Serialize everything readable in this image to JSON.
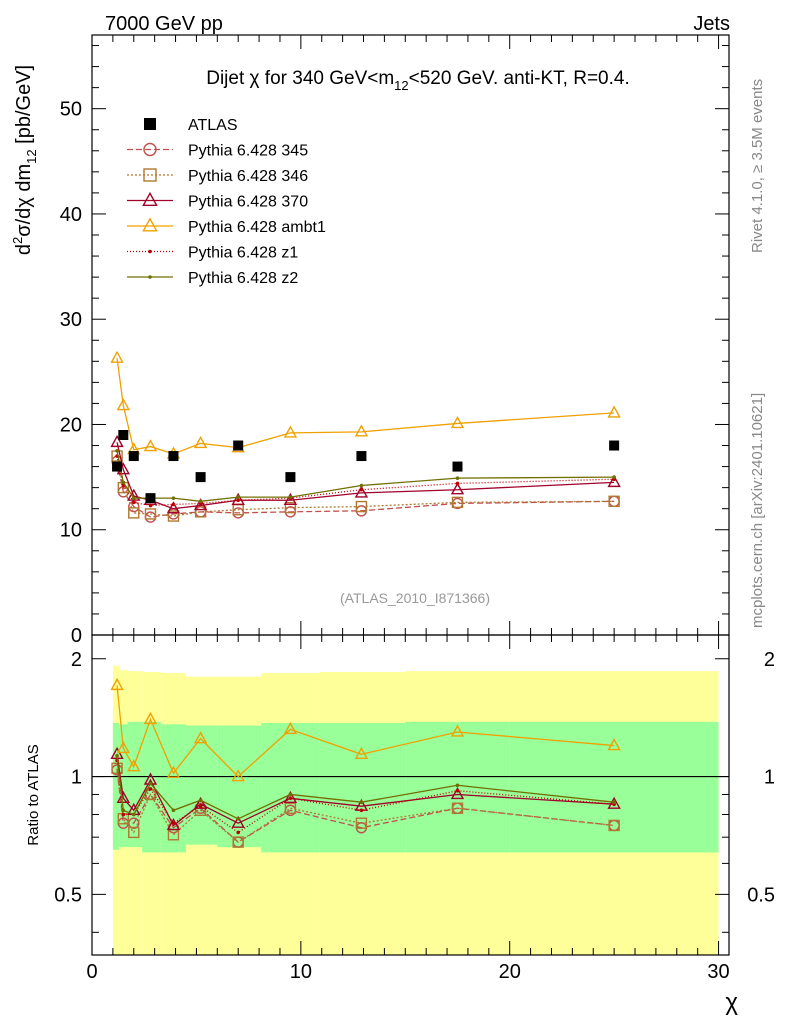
{
  "header": {
    "left": "7000 GeV pp",
    "right": "Jets"
  },
  "side_labels": {
    "rivet": "Rivet 4.1.0, ≥ 3.5M events",
    "mcplots": "mcplots.cern.ch [arXiv:2401.10621]"
  },
  "chart_data": {
    "type": "line",
    "title": "Dijet χ for 340 GeV<m₁₂<520 GeV.  anti-KT, R=0.4.",
    "title_parts": {
      "a": "Dijet ",
      "chi": "χ",
      "b": " for 340 GeV<m",
      "sub": "12",
      "c": "<520 GeV.  anti-KT, R=0.4."
    },
    "analysis_id": "(ATLAS_2010_I871366)",
    "xlabel": "χ",
    "ylabel": "d²σ/dχ dm₁₂ [pb/GeV]",
    "ylabel_parts": {
      "d": "d",
      "sup2": "2",
      "rest": "σ/dχ dm",
      "sub": "12",
      "unit": " [pb/GeV]"
    },
    "ratio_ylabel": "Ratio to ATLAS",
    "xlim": [
      0,
      30.5
    ],
    "ylim": [
      0,
      57
    ],
    "ratio_ylim": [
      0.35,
      2.3
    ],
    "x_ticks": [
      0,
      10,
      20,
      30
    ],
    "y_ticks": [
      0,
      10,
      20,
      30,
      40,
      50
    ],
    "ratio_ticks": [
      0.5,
      1,
      2
    ],
    "ratio_tick_labels": [
      "0.5",
      "1",
      "2"
    ],
    "legend_position": "top-left",
    "x": [
      1.2,
      1.5,
      2.0,
      2.8,
      3.9,
      5.2,
      7.0,
      9.5,
      12.9,
      17.5,
      25.0
    ],
    "atlas": [
      16,
      19,
      17,
      13,
      17,
      15,
      18,
      15,
      17,
      16,
      18
    ],
    "series": [
      {
        "name": "ATLAS",
        "color": "#000000",
        "marker": "square-filled",
        "dash": ""
      },
      {
        "name": "Pythia 6.428 345",
        "color": "#c0504d",
        "marker": "circle",
        "dash": "6,3",
        "values": [
          16.5,
          13.6,
          12.2,
          11.2,
          11.5,
          11.7,
          11.6,
          11.7,
          11.8,
          12.5,
          12.7
        ]
      },
      {
        "name": "Pythia 6.428 346",
        "color": "#b07830",
        "marker": "square",
        "dash": "2,2",
        "values": [
          17.0,
          14.0,
          11.6,
          11.5,
          11.3,
          11.7,
          11.9,
          12.1,
          12.2,
          12.6,
          12.7
        ]
      },
      {
        "name": "Pythia 6.428 370",
        "color": "#a0002a",
        "marker": "triangle",
        "dash": "",
        "values": [
          18.3,
          15.7,
          13.2,
          12.8,
          12.0,
          12.3,
          12.8,
          12.8,
          13.5,
          13.8,
          14.5
        ]
      },
      {
        "name": "Pythia 6.428 ambt1",
        "color": "#f0a000",
        "marker": "triangle",
        "dash": "",
        "values": [
          26.3,
          21.8,
          17.6,
          17.9,
          17.2,
          18.2,
          17.8,
          19.2,
          19.3,
          20.1,
          21.1
        ]
      },
      {
        "name": "Pythia 6.428 z1",
        "color": "#c00000",
        "marker": "dot",
        "dash": "1,2",
        "values": [
          17.0,
          14.2,
          12.6,
          12.3,
          12.4,
          12.5,
          12.8,
          13.0,
          13.8,
          14.4,
          14.8
        ]
      },
      {
        "name": "Pythia 6.428 z2",
        "color": "#707000",
        "marker": "dot",
        "dash": "",
        "values": [
          17.5,
          14.5,
          13.0,
          13.0,
          13.0,
          12.7,
          13.1,
          13.1,
          14.2,
          14.9,
          15.0
        ]
      }
    ],
    "ratio_series": [
      {
        "name": "Pythia 6.428 345",
        "values": [
          1.04,
          0.76,
          0.76,
          0.9,
          0.74,
          0.83,
          0.68,
          0.82,
          0.74,
          0.83,
          0.75
        ]
      },
      {
        "name": "Pythia 6.428 346",
        "values": [
          1.05,
          0.78,
          0.72,
          0.9,
          0.71,
          0.82,
          0.68,
          0.83,
          0.76,
          0.83,
          0.75
        ]
      },
      {
        "name": "Pythia 6.428 370",
        "values": [
          1.14,
          0.88,
          0.82,
          0.98,
          0.75,
          0.85,
          0.76,
          0.88,
          0.84,
          0.9,
          0.85
        ]
      },
      {
        "name": "Pythia 6.428 ambt1",
        "values": [
          1.71,
          1.18,
          1.06,
          1.4,
          1.02,
          1.25,
          1.0,
          1.32,
          1.14,
          1.3,
          1.2
        ]
      },
      {
        "name": "Pythia 6.428 z1",
        "values": [
          1.1,
          0.8,
          0.8,
          0.93,
          0.76,
          0.84,
          0.72,
          0.88,
          0.82,
          0.92,
          0.85
        ]
      },
      {
        "name": "Pythia 6.428 z2",
        "values": [
          1.13,
          0.82,
          0.8,
          0.96,
          0.82,
          0.87,
          0.78,
          0.9,
          0.86,
          0.95,
          0.86
        ]
      }
    ],
    "ratio_bands": {
      "edges": [
        1,
        1.3,
        1.7,
        2.4,
        3.3,
        4.5,
        6.0,
        8.1,
        10.9,
        15.0,
        20.0,
        30.0
      ],
      "yellow_low": [
        0.35,
        0.35,
        0.35,
        0.35,
        0.35,
        0.35,
        0.35,
        0.35,
        0.35,
        0.35,
        0.35
      ],
      "yellow_high": [
        1.92,
        1.87,
        1.86,
        1.85,
        1.84,
        1.8,
        1.8,
        1.84,
        1.85,
        1.86,
        1.86
      ],
      "green_low": [
        0.65,
        0.66,
        0.66,
        0.64,
        0.64,
        0.67,
        0.66,
        0.64,
        0.64,
        0.64,
        0.64
      ],
      "green_high": [
        1.37,
        1.36,
        1.38,
        1.38,
        1.36,
        1.35,
        1.35,
        1.37,
        1.37,
        1.38,
        1.38
      ],
      "yellow_color": "#ffff99",
      "green_color": "#99ff99"
    }
  }
}
